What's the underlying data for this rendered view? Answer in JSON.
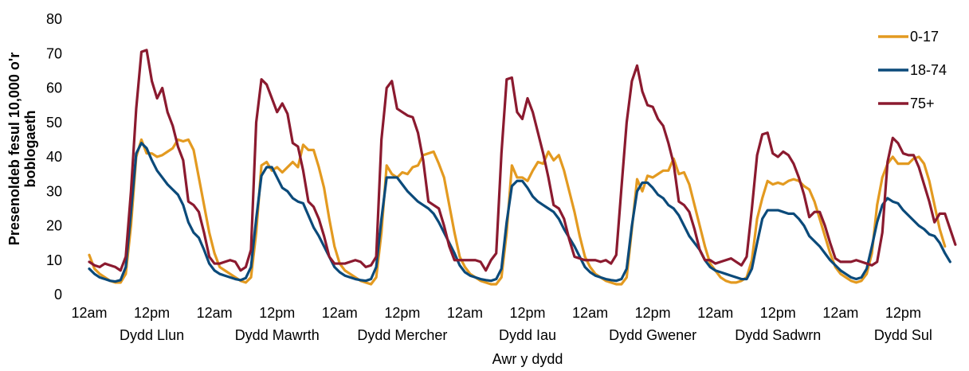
{
  "chart_data": {
    "type": "line",
    "title": "",
    "xlabel": "Awr y dydd",
    "ylabel_lines": [
      "Presenoldeb fesul 10,000 o'r",
      "boblogaeth"
    ],
    "ylim": [
      0,
      80
    ],
    "yticks": [
      0,
      10,
      20,
      30,
      40,
      50,
      60,
      70,
      80
    ],
    "grid": false,
    "legend_position": "top-right",
    "hours_per_day": 24,
    "x_tick_labels": [
      "12am",
      "12pm",
      "12am",
      "12pm",
      "12am",
      "12pm",
      "12am",
      "12pm",
      "12am",
      "12pm",
      "12am",
      "12pm",
      "12am",
      "12pm"
    ],
    "days": [
      "Dydd Llun",
      "Dydd Mawrth",
      "Dydd Mercher",
      "Dydd Iau",
      "Dydd Gwener",
      "Dydd Sadwrn",
      "Dydd Sul"
    ],
    "series": [
      {
        "name": "0-17",
        "color": "#E39A20",
        "values": [
          11.5,
          7.5,
          6,
          5,
          4,
          3.5,
          3.5,
          6,
          20,
          40,
          45,
          41,
          41,
          40,
          40.5,
          41.5,
          42.5,
          45,
          44.5,
          45,
          42,
          34,
          26,
          18,
          12,
          8,
          7,
          6,
          5,
          4,
          3.5,
          5,
          18,
          37.5,
          38.5,
          36,
          37,
          35.5,
          37,
          38.5,
          37,
          43.5,
          42,
          42,
          37,
          31,
          22,
          14,
          9,
          7,
          6,
          5,
          4,
          3.5,
          3,
          5,
          18,
          37.5,
          35,
          34,
          35.5,
          35,
          37,
          37.5,
          40.5,
          41,
          41.5,
          38,
          34,
          26,
          18,
          11,
          8,
          6,
          5,
          4,
          3.5,
          3,
          3,
          5,
          18,
          37.5,
          34,
          34,
          33,
          36,
          38.5,
          38,
          41.5,
          39,
          40.5,
          36,
          30,
          24,
          17,
          11,
          8,
          6,
          5,
          4,
          3.5,
          3,
          3,
          5,
          19,
          33.5,
          30,
          34.5,
          34,
          35,
          36,
          36,
          39.5,
          35,
          35.5,
          32,
          26,
          20,
          14,
          9,
          7,
          5,
          4,
          3.5,
          3.5,
          4,
          5,
          10,
          22,
          28,
          33,
          32,
          32.5,
          32,
          33,
          33.5,
          33,
          31.5,
          30.5,
          27,
          22,
          17,
          12,
          8,
          6,
          5,
          4,
          3.5,
          4,
          6,
          12,
          26,
          34,
          38,
          40,
          38,
          38,
          38,
          39.5,
          40,
          38,
          33,
          26,
          19,
          14
        ]
      },
      {
        "name": "18-74",
        "color": "#0B4A7A",
        "values": [
          7.5,
          6,
          5,
          4.5,
          4,
          3.8,
          4.2,
          8,
          24,
          41,
          44,
          42.5,
          39,
          36,
          34,
          32,
          30.5,
          29,
          26,
          21,
          18,
          16.5,
          13,
          9,
          7,
          6,
          5.5,
          5,
          4.5,
          4.2,
          4.8,
          8,
          22,
          34.5,
          37,
          37,
          34,
          31,
          30,
          28,
          27,
          26.5,
          23,
          19.5,
          17,
          14,
          11,
          8,
          6.5,
          5.5,
          5,
          4.5,
          4.2,
          4,
          4.5,
          8,
          22,
          34,
          34,
          34,
          32,
          30,
          28.5,
          27,
          26,
          25,
          23.5,
          21,
          18,
          15,
          12,
          8.5,
          6.5,
          5.5,
          5,
          4.5,
          4.2,
          4,
          4.5,
          7.5,
          21,
          31.5,
          33,
          33,
          31,
          28.5,
          27,
          26,
          25,
          24,
          22,
          19,
          16.5,
          14,
          11,
          8,
          6.5,
          5.5,
          5,
          4.5,
          4.2,
          4,
          4.5,
          7.5,
          20,
          30,
          32.5,
          32.5,
          31,
          29,
          28,
          26,
          25,
          23,
          20,
          17,
          15,
          13,
          10,
          8,
          7,
          6.5,
          6,
          5.5,
          5,
          4.5,
          4.5,
          7.5,
          15,
          22,
          24.5,
          24.5,
          24.5,
          24,
          23.5,
          23.5,
          22,
          20,
          17,
          15.5,
          14,
          12,
          10,
          8.5,
          7,
          6,
          5,
          4.5,
          5,
          7.5,
          14,
          21,
          26,
          28,
          27,
          26.5,
          24.5,
          23,
          21.5,
          20,
          19,
          17.5,
          17,
          15,
          12,
          9.5
        ]
      },
      {
        "name": "75+",
        "color": "#8B1A2F",
        "values": [
          9.5,
          8.5,
          8,
          9,
          8.5,
          8,
          7,
          11,
          30,
          54,
          70.5,
          71,
          62,
          57,
          60,
          53,
          49,
          43,
          39,
          27,
          26,
          24,
          18,
          11,
          9,
          9,
          9.5,
          10,
          9.5,
          7,
          8,
          13,
          50,
          62.5,
          61,
          57,
          53,
          55.5,
          52.5,
          44,
          43,
          36,
          27,
          25.5,
          22,
          17,
          11,
          9,
          9,
          9,
          9.5,
          10,
          9.5,
          8,
          8.5,
          11,
          45,
          60,
          62,
          54,
          53,
          52,
          51.5,
          47,
          39,
          27,
          26,
          25,
          20,
          14,
          10,
          10,
          10,
          10,
          10,
          9.5,
          7,
          10,
          12,
          41,
          62.5,
          63,
          53,
          51,
          57,
          53,
          47,
          41,
          34,
          26,
          25,
          22,
          16,
          11,
          10.5,
          10,
          10,
          10,
          9.5,
          10,
          9,
          11.5,
          31,
          50,
          62,
          66.5,
          59,
          55,
          54.5,
          51,
          49,
          44,
          38,
          27,
          26,
          24,
          19,
          13,
          10,
          10,
          9,
          9.5,
          10,
          10.5,
          9.5,
          8.5,
          11,
          25,
          40.5,
          46.5,
          47,
          41,
          40,
          41.5,
          40.5,
          38,
          34,
          29,
          22.5,
          24,
          24,
          20,
          15,
          10.5,
          9.5,
          9.5,
          9.5,
          10,
          9.5,
          9,
          8.5,
          9.5,
          18,
          38.5,
          45.5,
          44,
          41,
          40.5,
          40.5,
          37,
          32,
          27,
          21,
          23.5,
          23.5,
          19,
          14.5
        ]
      }
    ]
  }
}
